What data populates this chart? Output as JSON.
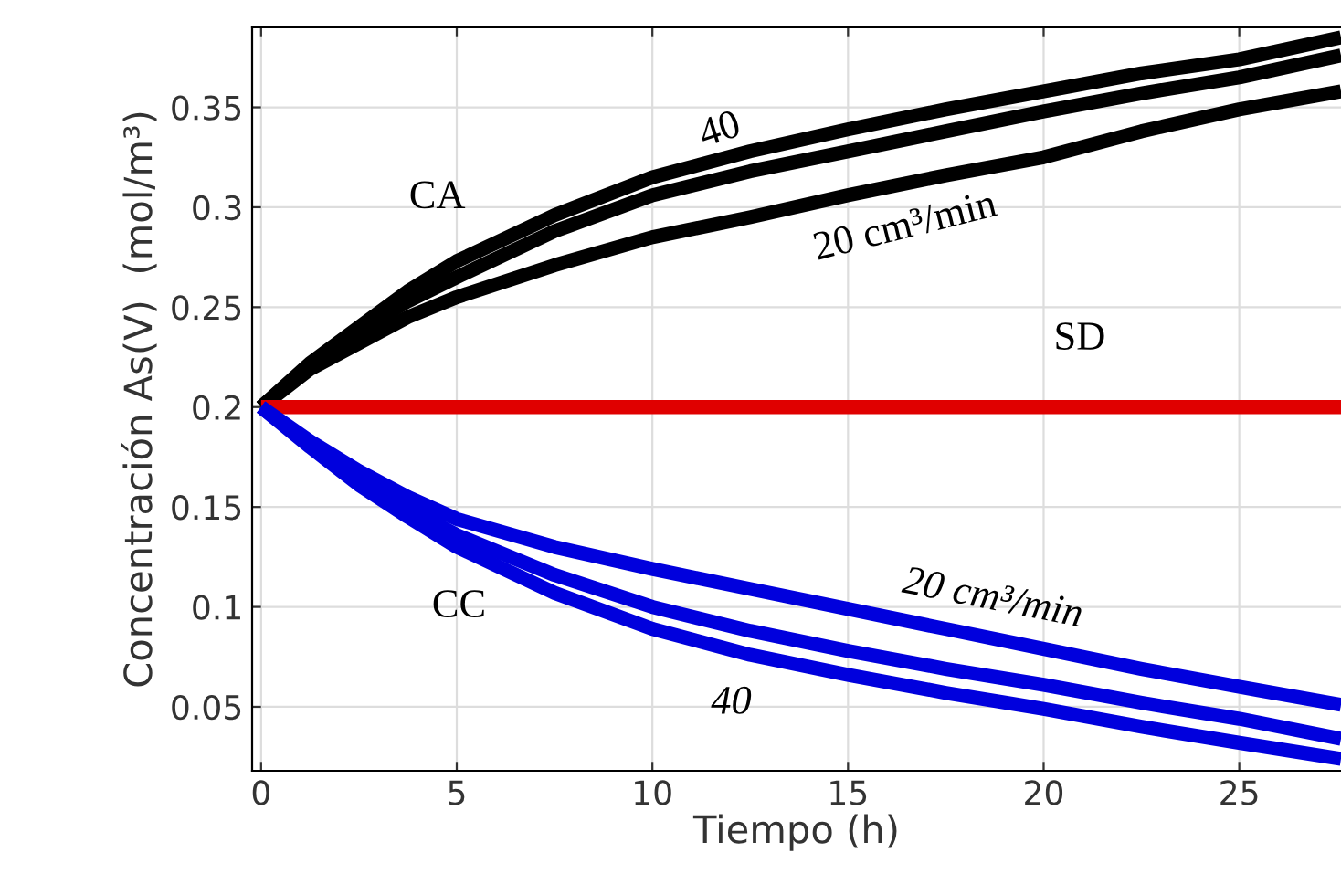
{
  "chart_data": {
    "type": "line",
    "xlabel": "Tiempo (h)",
    "ylabel": "Concentración As(V)  (mol/m³)",
    "xlim": [
      -0.23,
      27.6
    ],
    "ylim": [
      0.018,
      0.39
    ],
    "xticks": [
      0,
      5,
      10,
      15,
      20,
      25
    ],
    "yticks": [
      0.05,
      0.1,
      0.15,
      0.2,
      0.25,
      0.3,
      0.35
    ],
    "grid": true,
    "x": [
      0,
      1.25,
      2.5,
      3.75,
      5,
      7.5,
      10,
      12.5,
      15,
      17.5,
      20,
      22.5,
      25,
      27.6
    ],
    "series": [
      {
        "color": "#000000",
        "values": [
          0.2,
          0.222,
          0.24,
          0.258,
          0.273,
          0.296,
          0.315,
          0.328,
          0.339,
          0.349,
          0.358,
          0.367,
          0.374,
          0.385
        ]
      },
      {
        "color": "#000000",
        "values": [
          0.2,
          0.221,
          0.238,
          0.253,
          0.265,
          0.288,
          0.306,
          0.318,
          0.328,
          0.338,
          0.348,
          0.357,
          0.365,
          0.376
        ]
      },
      {
        "color": "#000000",
        "values": [
          0.2,
          0.219,
          0.232,
          0.245,
          0.255,
          0.271,
          0.285,
          0.295,
          0.306,
          0.316,
          0.325,
          0.338,
          0.349,
          0.358
        ]
      },
      {
        "color": "#e00000",
        "values": [
          0.2,
          0.2,
          0.2,
          0.2,
          0.2,
          0.2,
          0.2,
          0.2,
          0.2,
          0.2,
          0.2,
          0.2,
          0.2,
          0.2
        ]
      },
      {
        "color": "#0000dd",
        "values": [
          0.2,
          0.183,
          0.168,
          0.155,
          0.144,
          0.13,
          0.119,
          0.109,
          0.099,
          0.089,
          0.079,
          0.069,
          0.06,
          0.051
        ]
      },
      {
        "color": "#0000dd",
        "values": [
          0.2,
          0.181,
          0.164,
          0.149,
          0.136,
          0.116,
          0.1,
          0.088,
          0.078,
          0.069,
          0.061,
          0.052,
          0.044,
          0.034
        ]
      },
      {
        "color": "#0000dd",
        "values": [
          0.2,
          0.18,
          0.161,
          0.145,
          0.13,
          0.107,
          0.089,
          0.076,
          0.066,
          0.057,
          0.049,
          0.04,
          0.032,
          0.024
        ]
      }
    ],
    "annotations": [
      "CA",
      "40",
      "20 cm³/min",
      "SD",
      "CC",
      "20 cm³/min",
      "40"
    ]
  }
}
